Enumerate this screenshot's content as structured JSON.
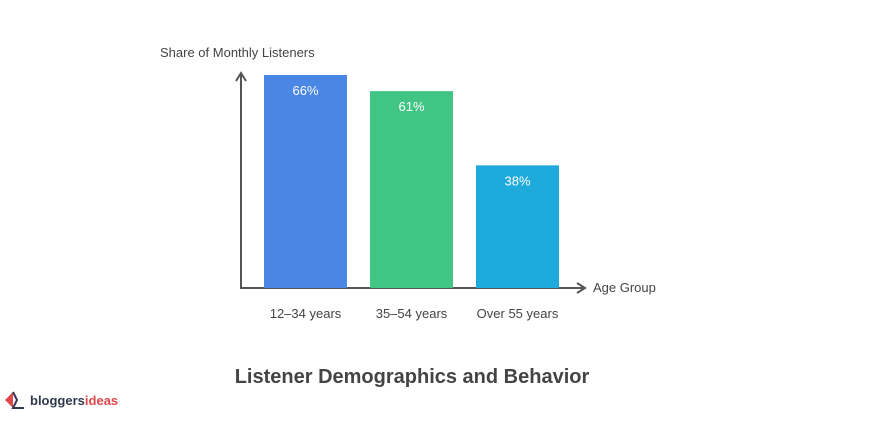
{
  "chart_data": {
    "type": "bar",
    "title": "Listener Demographics and Behavior",
    "xlabel": "Age Group",
    "ylabel": "Share of Monthly Listeners",
    "categories": [
      "12–34 years",
      "35–54 years",
      "Over 55 years"
    ],
    "values": [
      66,
      61,
      38
    ],
    "data_labels": [
      "66%",
      "61%",
      "38%"
    ],
    "colors": [
      "#4a86e3",
      "#40c585",
      "#1eaadb"
    ],
    "ylim": [
      0,
      68
    ],
    "grid": false
  },
  "logo": {
    "part1": "bloggers",
    "part2": "ideas"
  }
}
